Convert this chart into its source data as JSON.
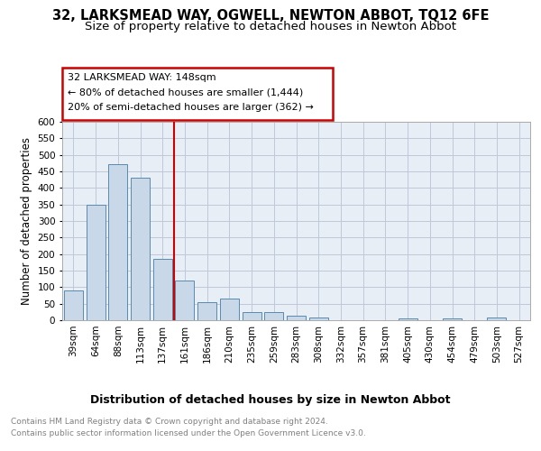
{
  "title": "32, LARKSMEAD WAY, OGWELL, NEWTON ABBOT, TQ12 6FE",
  "subtitle": "Size of property relative to detached houses in Newton Abbot",
  "xlabel": "Distribution of detached houses by size in Newton Abbot",
  "ylabel": "Number of detached properties",
  "categories": [
    "39sqm",
    "64sqm",
    "88sqm",
    "113sqm",
    "137sqm",
    "161sqm",
    "186sqm",
    "210sqm",
    "235sqm",
    "259sqm",
    "283sqm",
    "308sqm",
    "332sqm",
    "357sqm",
    "381sqm",
    "405sqm",
    "430sqm",
    "454sqm",
    "479sqm",
    "503sqm",
    "527sqm"
  ],
  "values": [
    90,
    348,
    472,
    430,
    185,
    120,
    55,
    65,
    25,
    25,
    13,
    8,
    1,
    1,
    0,
    5,
    0,
    5,
    0,
    7,
    0
  ],
  "bar_color": "#c8d8e8",
  "bar_edge_color": "#5a8ab0",
  "vline_x_index": 4.5,
  "vline_color": "#cc0000",
  "annotation_line1": "32 LARKSMEAD WAY: 148sqm",
  "annotation_line2": "← 80% of detached houses are smaller (1,444)",
  "annotation_line3": "20% of semi-detached houses are larger (362) →",
  "annotation_box_color": "#cc0000",
  "ylim": [
    0,
    600
  ],
  "yticks": [
    0,
    50,
    100,
    150,
    200,
    250,
    300,
    350,
    400,
    450,
    500,
    550,
    600
  ],
  "grid_color": "#c0c8d8",
  "background_color": "#e8eef5",
  "footer_line1": "Contains HM Land Registry data © Crown copyright and database right 2024.",
  "footer_line2": "Contains public sector information licensed under the Open Government Licence v3.0.",
  "title_fontsize": 10.5,
  "subtitle_fontsize": 9.5,
  "xlabel_fontsize": 9,
  "ylabel_fontsize": 8.5,
  "annotation_fontsize": 8,
  "tick_fontsize": 7.5,
  "footer_fontsize": 6.5
}
